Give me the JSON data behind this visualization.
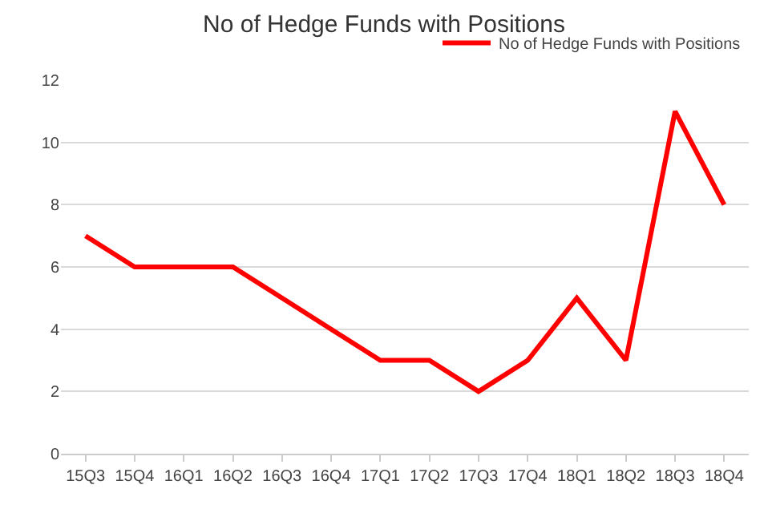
{
  "chart_data": {
    "type": "line",
    "title": "No of Hedge Funds with Positions",
    "categories": [
      "15Q3",
      "15Q4",
      "16Q1",
      "16Q2",
      "16Q3",
      "16Q4",
      "17Q1",
      "17Q2",
      "17Q3",
      "17Q4",
      "18Q1",
      "18Q2",
      "18Q3",
      "18Q4"
    ],
    "series": [
      {
        "name": "No of Hedge Funds with Positions",
        "color": "#ff0000",
        "values": [
          7,
          6,
          6,
          6,
          5,
          4,
          3,
          3,
          2,
          3,
          5,
          3,
          11,
          8
        ]
      }
    ],
    "ylim": [
      0,
      12
    ],
    "yticks": [
      0,
      2,
      4,
      6,
      8,
      10,
      12
    ],
    "grid": "y",
    "legend": "top right",
    "marker": "none",
    "line_style": "solid"
  }
}
